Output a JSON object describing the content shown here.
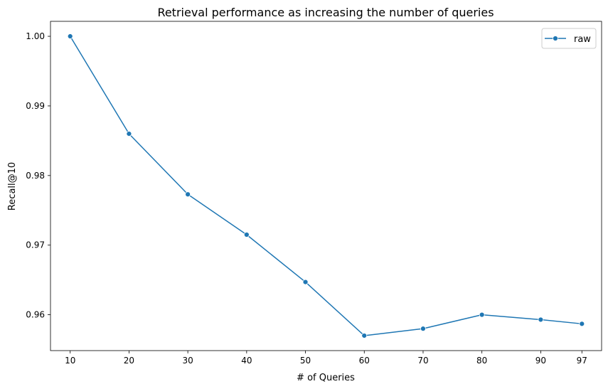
{
  "chart_data": {
    "type": "line",
    "title": "Retrieval performance as increasing the number of queries",
    "xlabel": "# of Queries",
    "ylabel": "Recall@10",
    "x": [
      10,
      20,
      30,
      40,
      50,
      60,
      70,
      80,
      90,
      97
    ],
    "x_tick_labels": [
      "10",
      "20",
      "30",
      "40",
      "50",
      "60",
      "70",
      "80",
      "90",
      "97"
    ],
    "y_ticks": [
      0.96,
      0.97,
      0.98,
      0.99,
      1.0
    ],
    "y_tick_labels": [
      "0.96",
      "0.97",
      "0.98",
      "0.99",
      "1.00"
    ],
    "xlim": [
      6.65,
      100.35
    ],
    "ylim": [
      0.95485,
      1.00215
    ],
    "grid": false,
    "legend_position": "top-right",
    "series": [
      {
        "name": "raw",
        "color": "#1f77b4",
        "marker": "circle",
        "values": [
          1.0,
          0.986,
          0.9773,
          0.9715,
          0.9647,
          0.957,
          0.958,
          0.96,
          0.9593,
          0.9587
        ]
      }
    ]
  }
}
